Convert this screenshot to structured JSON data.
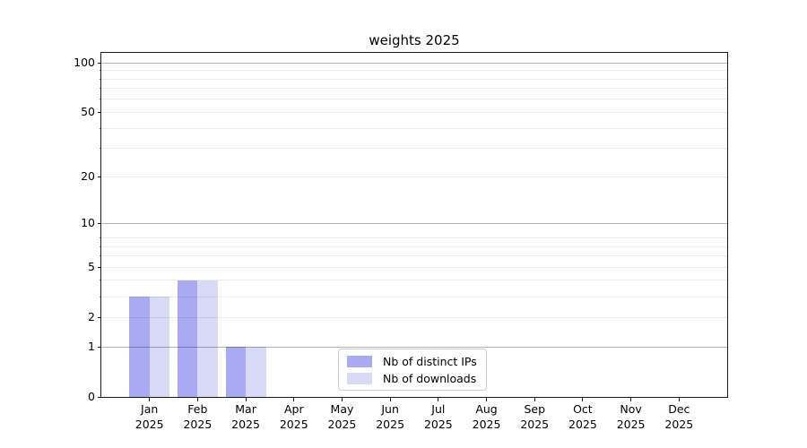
{
  "title": "weights 2025",
  "legend": {
    "items": [
      {
        "label": "Nb of distinct IPs",
        "color": "#a9a9f4"
      },
      {
        "label": "Nb of downloads",
        "color": "#d9d9f8"
      }
    ]
  },
  "chart_data": {
    "type": "bar",
    "title": "weights 2025",
    "categories": [
      "Jan 2025",
      "Feb 2025",
      "Mar 2025",
      "Apr 2025",
      "May 2025",
      "Jun 2025",
      "Jul 2025",
      "Aug 2025",
      "Sep 2025",
      "Oct 2025",
      "Nov 2025",
      "Dec 2025"
    ],
    "category_line1": [
      "Jan",
      "Feb",
      "Mar",
      "Apr",
      "May",
      "Jun",
      "Jul",
      "Aug",
      "Sep",
      "Oct",
      "Nov",
      "Dec"
    ],
    "category_line2": "2025",
    "series": [
      {
        "name": "Nb of distinct IPs",
        "color": "#a9a9f4",
        "values": [
          3,
          4,
          1,
          0,
          0,
          0,
          0,
          0,
          0,
          0,
          0,
          0
        ]
      },
      {
        "name": "Nb of downloads",
        "color": "#d9d9f8",
        "values": [
          3,
          4,
          1,
          0,
          0,
          0,
          0,
          0,
          0,
          0,
          0,
          0
        ]
      }
    ],
    "yscale": "log1p",
    "ylim": [
      0,
      115
    ],
    "xlabel": "",
    "ylabel": "",
    "y_ticks": [
      0,
      1,
      2,
      5,
      10,
      20,
      50,
      100
    ],
    "y_major_gridlines": [
      1,
      10,
      100
    ],
    "y_minor_gridlines": [
      2,
      3,
      4,
      5,
      6,
      7,
      8,
      20,
      30,
      40,
      50,
      60,
      70,
      80,
      90
    ],
    "grid": true,
    "legend_position": "lower center"
  }
}
